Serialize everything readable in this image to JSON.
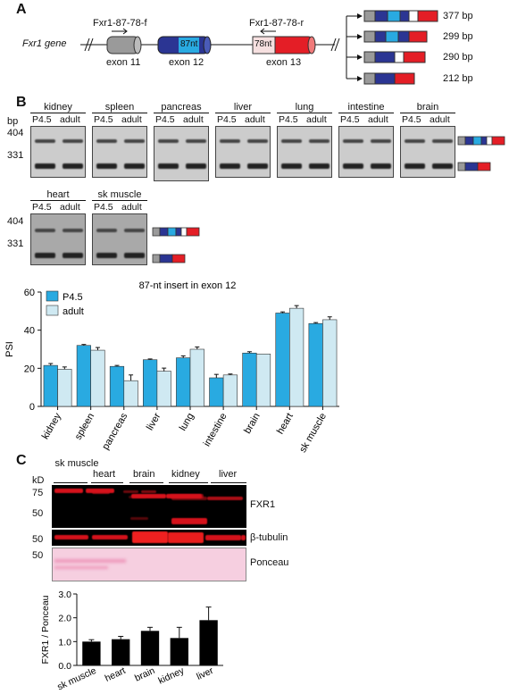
{
  "panels": {
    "a": "A",
    "b": "B",
    "c": "C"
  },
  "panel_a": {
    "gene": "Fxr1 gene",
    "primer_f": "Fxr1-87-78-f",
    "primer_r": "Fxr1-87-78-r",
    "exons": [
      "exon 11",
      "exon 12",
      "exon 13"
    ],
    "insert_87": "87nt",
    "insert_78": "78nt",
    "isoforms": [
      "377 bp",
      "299 bp",
      "290 bp",
      "212 bp"
    ],
    "colors": {
      "gray": "#9a9a9a",
      "blue": "#2b3593",
      "cyan": "#29aae1",
      "red": "#e41e26",
      "pink": "#f4c9c9"
    }
  },
  "panel_b": {
    "bp_label": "bp",
    "markers": [
      "404",
      "331"
    ],
    "lanes": [
      "P4.5",
      "adult"
    ],
    "tissues_row1": [
      "kidney",
      "spleen",
      "pancreas",
      "liver",
      "lung",
      "intestine",
      "brain"
    ],
    "tissues_row2": [
      "heart",
      "sk muscle"
    ]
  },
  "chart_data": {
    "type": "bar",
    "title": "87-nt insert in exon 12",
    "ylabel": "PSI",
    "ylim": [
      0,
      60
    ],
    "yticks": [
      "0",
      "20",
      "40",
      "60"
    ],
    "categories": [
      "kidney",
      "spleen",
      "pancreas",
      "liver",
      "lung",
      "intestine",
      "brain",
      "heart",
      "sk muscle"
    ],
    "series": [
      {
        "name": "P4.5",
        "color": "#29aae1",
        "values": [
          21.5,
          32,
          21,
          24.5,
          25.5,
          15,
          28,
          49,
          43.5
        ],
        "errors": [
          1,
          0.5,
          0.5,
          0.4,
          1,
          1.8,
          0.7,
          0.6,
          0.5
        ]
      },
      {
        "name": "adult",
        "color": "#cfe9f2",
        "values": [
          19.5,
          29.5,
          13.5,
          18.5,
          30,
          16.5,
          27.5,
          51.5,
          45.5
        ],
        "errors": [
          1.2,
          1.4,
          3,
          1.6,
          1.2,
          0.5,
          0,
          1.4,
          1.5
        ]
      }
    ],
    "legend": "top-left"
  },
  "panel_c": {
    "kd": "kD",
    "tissues": [
      "sk muscle",
      "heart",
      "brain",
      "kidney",
      "liver"
    ],
    "markers_top": [
      "75",
      "50"
    ],
    "marker_mid": "50",
    "marker_bottom": "50",
    "blot_labels": [
      "FXR1",
      "β-tubulin",
      "Ponceau"
    ]
  },
  "chart_data_c": {
    "type": "bar",
    "ylabel": "FXR1 / Ponceau",
    "ylim": [
      0,
      3
    ],
    "yticks": [
      "0.0",
      "1.0",
      "2.0",
      "3.0"
    ],
    "categories": [
      "sk muscle",
      "heart",
      "brain",
      "kidney",
      "liver"
    ],
    "values": [
      1.0,
      1.1,
      1.45,
      1.15,
      1.9
    ],
    "errors": [
      0.08,
      0.12,
      0.15,
      0.45,
      0.55
    ],
    "color": "#000000"
  }
}
